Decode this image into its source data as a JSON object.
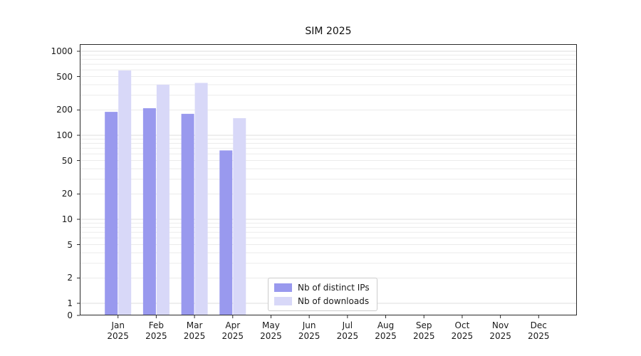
{
  "chart_data": {
    "type": "bar",
    "title": "SIM 2025",
    "categories": [
      "Jan 2025",
      "Feb 2025",
      "Mar 2025",
      "Apr 2025",
      "May 2025",
      "Jun 2025",
      "Jul 2025",
      "Aug 2025",
      "Sep 2025",
      "Oct 2025",
      "Nov 2025",
      "Dec 2025"
    ],
    "series": [
      {
        "name": "Nb of distinct IPs",
        "color": "#9999ee",
        "values": [
          190,
          210,
          180,
          66,
          0,
          0,
          0,
          0,
          0,
          0,
          0,
          0
        ]
      },
      {
        "name": "Nb of downloads",
        "color": "#d8d8f8",
        "values": [
          590,
          400,
          420,
          160,
          0,
          0,
          0,
          0,
          0,
          0,
          0,
          0
        ]
      }
    ],
    "xlabel": "",
    "ylabel": "",
    "yscale": "symlog",
    "yticks": [
      0,
      1,
      2,
      5,
      10,
      20,
      50,
      100,
      200,
      500,
      1000
    ],
    "ylim": [
      0,
      1000
    ],
    "grid": true,
    "legend_position": "bottom-center",
    "colors": {
      "grid_minor": "#ebebeb",
      "grid_major": "#dcdcdc",
      "spine": "#2a2a2a",
      "legend_border": "#cccccc"
    }
  }
}
